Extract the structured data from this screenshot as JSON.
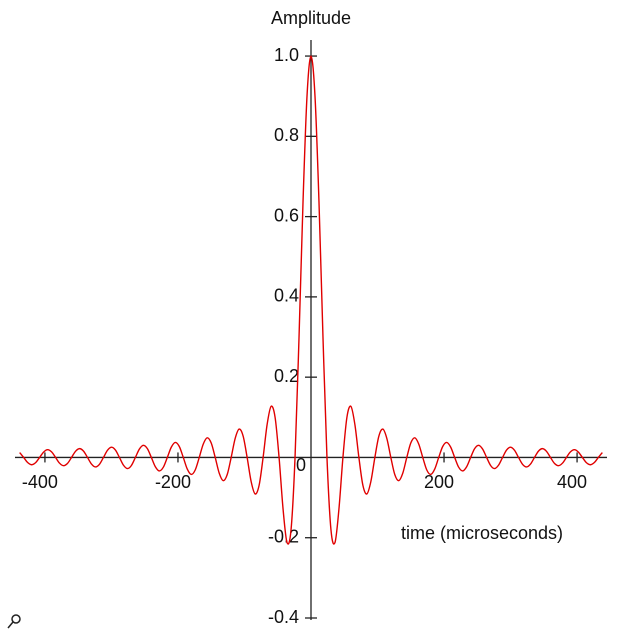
{
  "chart_data": {
    "type": "line",
    "y_axis_label": "Amplitude",
    "x_axis_label": "time (microseconds)",
    "xlim": [
      -445,
      445
    ],
    "ylim": [
      -0.4,
      1.04
    ],
    "xticks": [
      -400,
      -200,
      0,
      200,
      400
    ],
    "yticks": [
      -0.4,
      -0.2,
      0.2,
      0.4,
      0.6,
      {
        "value": 0.8,
        "label": "0.8"
      },
      {
        "value": 1,
        "label": "1.0"
      }
    ],
    "x": [
      -438,
      -432,
      -426,
      -420,
      -414,
      -408,
      -402,
      -396,
      -390,
      -384,
      -378,
      -372,
      -366,
      -360,
      -354,
      -348,
      -342,
      -336,
      -330,
      -324,
      -318,
      -312,
      -306,
      -300,
      -294,
      -288,
      -282,
      -276,
      -270,
      -264,
      -258,
      -252,
      -246,
      -240,
      -234,
      -228,
      -222,
      -216,
      -210,
      -204,
      -198,
      -192,
      -186,
      -180,
      -174,
      -168,
      -162,
      -156,
      -150,
      -144,
      -138,
      -132,
      -126,
      -120,
      -114,
      -108,
      -102,
      -96,
      -90,
      -84,
      -78,
      -72,
      -66,
      -60,
      -54,
      -48,
      -42,
      -36,
      -30,
      -24,
      -18,
      -12,
      -6,
      0,
      6,
      12,
      18,
      24,
      30,
      36,
      42,
      48,
      54,
      60,
      66,
      72,
      78,
      84,
      90,
      96,
      102,
      108,
      114,
      120,
      126,
      132,
      138,
      144,
      150,
      156,
      162,
      168,
      174,
      180,
      186,
      192,
      198,
      204,
      210,
      216,
      222,
      228,
      234,
      240,
      246,
      252,
      258,
      264,
      270,
      276,
      282,
      288,
      294,
      300,
      306,
      312,
      318,
      324,
      330,
      336,
      342,
      348,
      354,
      360,
      366,
      372,
      378,
      384,
      390,
      396,
      402,
      408,
      414,
      420,
      426,
      432,
      438
    ],
    "series": [
      {
        "color": "#e00000",
        "values": [
          0.0123,
          0,
          -0.0127,
          -0.0182,
          -0.013,
          0,
          0.0134,
          0.0193,
          0.0139,
          0,
          -0.0143,
          -0.0205,
          -0.0148,
          0,
          0.0153,
          0.022,
          0.0158,
          0,
          -0.0164,
          -0.0236,
          -0.017,
          0,
          0.0177,
          0.0255,
          0.0184,
          0,
          -0.0192,
          -0.0277,
          -0.02,
          0,
          0.0209,
          0.0303,
          0.022,
          0,
          -0.0231,
          -0.0335,
          -0.0243,
          0,
          0.0257,
          0.0374,
          0.0273,
          0,
          -0.029,
          -0.0424,
          -0.031,
          0,
          0.0333,
          0.049,
          0.036,
          0,
          -0.0391,
          -0.0579,
          -0.0429,
          0,
          0.0474,
          0.0707,
          0.053,
          0,
          -0.06,
          -0.0909,
          -0.0693,
          0,
          0.0818,
          0.1273,
          0.1,
          0,
          -0.1286,
          -0.2122,
          -0.1801,
          0,
          0.3001,
          0.6366,
          0.9003,
          1,
          0.9003,
          0.6366,
          0.3001,
          0,
          -0.1801,
          -0.2122,
          -0.1286,
          0,
          0.1,
          0.1273,
          0.0818,
          0,
          -0.0693,
          -0.0909,
          -0.06,
          0,
          0.053,
          0.0707,
          0.0474,
          0,
          -0.0429,
          -0.0579,
          -0.0391,
          0,
          0.036,
          0.049,
          0.0333,
          0,
          -0.031,
          -0.0424,
          -0.029,
          0,
          0.0273,
          0.0374,
          0.0257,
          0,
          -0.0243,
          -0.0335,
          -0.0231,
          0,
          0.022,
          0.0303,
          0.0209,
          0,
          -0.02,
          -0.0277,
          -0.0192,
          0,
          0.0184,
          0.0255,
          0.0177,
          0,
          -0.017,
          -0.0236,
          -0.0164,
          0,
          0.0158,
          0.022,
          0.0153,
          0,
          -0.0148,
          -0.0205,
          -0.0143,
          0,
          0.0139,
          0.0193,
          0.0134,
          0,
          -0.013,
          -0.0182,
          -0.0127,
          0,
          0.0123
        ]
      }
    ]
  }
}
